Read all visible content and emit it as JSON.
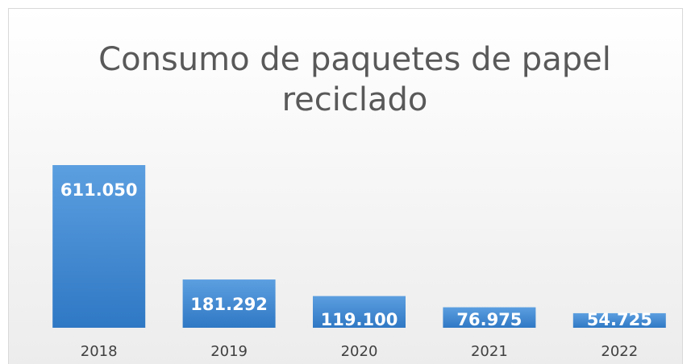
{
  "chart_data": {
    "type": "bar",
    "title": [
      "Consumo de paquetes de papel",
      "reciclado"
    ],
    "categories": [
      "2018",
      "2019",
      "2020",
      "2021",
      "2022"
    ],
    "values": [
      611050,
      181292,
      119100,
      76975,
      54725
    ],
    "value_labels": [
      "611.050",
      "181.292",
      "119.100",
      "76.975",
      "54.725"
    ],
    "color": "#4a8fd6"
  }
}
